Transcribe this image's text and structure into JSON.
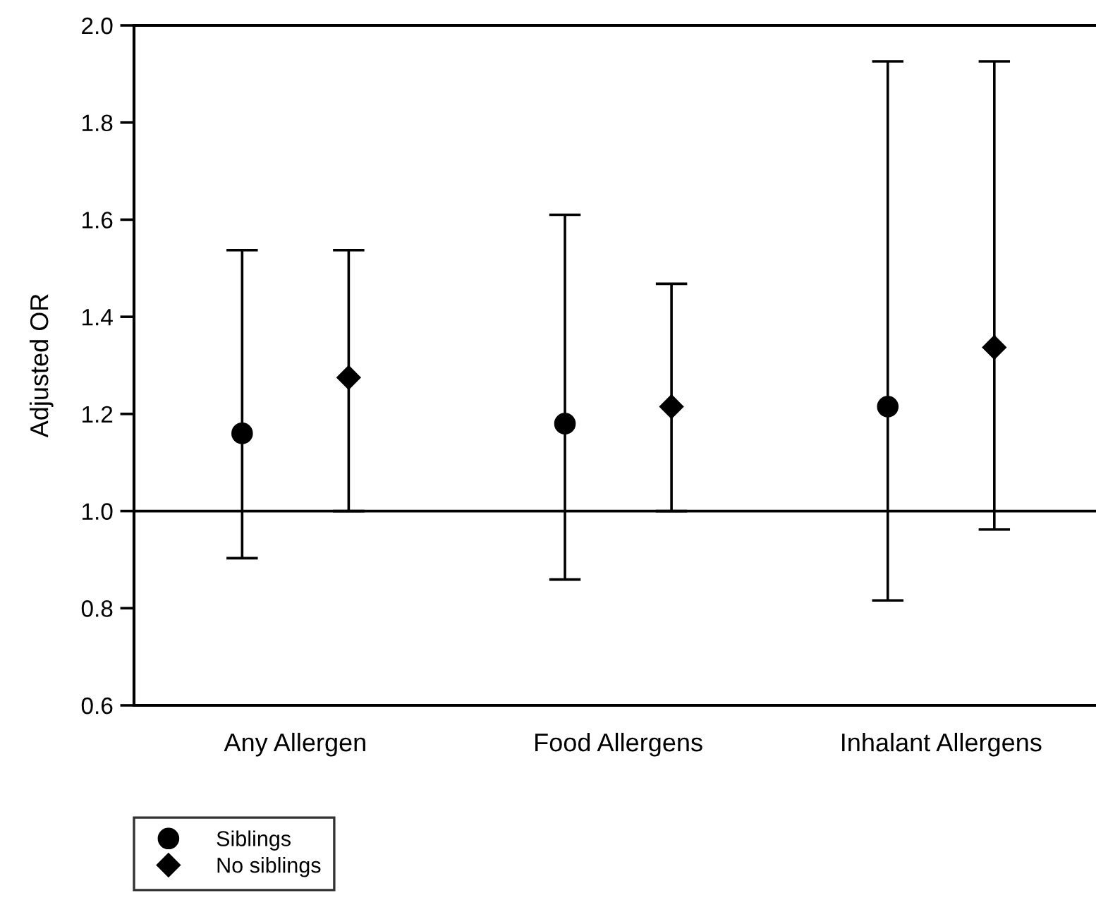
{
  "chart_data": {
    "type": "scatter",
    "ylabel": "Adjusted OR",
    "categories": [
      "Any Allergen",
      "Food Allergens",
      "Inhalant Allergens"
    ],
    "series": [
      {
        "name": "Siblings",
        "color": "#000000",
        "marker": "circle",
        "values": [
          1.16,
          1.18,
          1.215
        ],
        "errors": [
          [
            0.903,
            1.537
          ],
          [
            0.859,
            1.61
          ],
          [
            0.816,
            1.926
          ]
        ]
      },
      {
        "name": "No siblings",
        "color": "#000000",
        "marker": "diamond",
        "values": [
          1.275,
          1.215,
          1.337
        ],
        "errors": [
          [
            1.0,
            1.537
          ],
          [
            1.0,
            1.468
          ],
          [
            0.962,
            1.926
          ]
        ]
      }
    ],
    "ylim": [
      0.6,
      2.0
    ],
    "yticks": [
      {
        "value": 0.6,
        "label": "0.6"
      },
      {
        "value": 0.8,
        "label": "0.8"
      },
      {
        "value": 1.0,
        "label": "1.0"
      },
      {
        "value": 1.2,
        "label": "1.2"
      },
      {
        "value": 1.4,
        "label": "1.4"
      },
      {
        "value": 1.6,
        "label": "1.6"
      },
      {
        "value": 1.8,
        "label": "1.8"
      },
      {
        "value": 2.0,
        "label": "2.0"
      }
    ],
    "ref_lines": [
      {
        "axis": "y",
        "value": 1.0,
        "color": "#000000"
      }
    ],
    "grid": false,
    "legend": "bottom left"
  }
}
